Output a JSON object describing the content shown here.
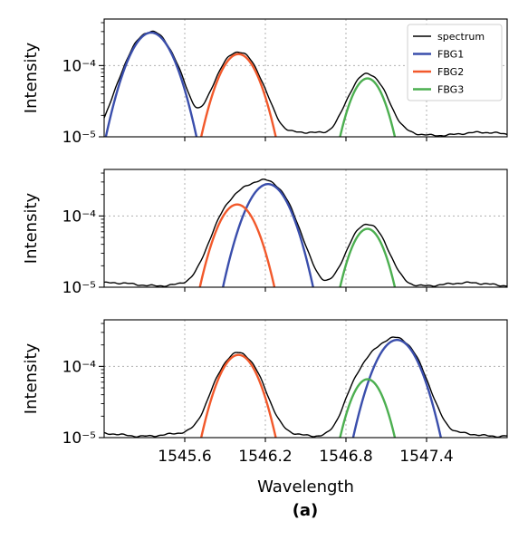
{
  "caption": "(a)",
  "colors": {
    "spectrum": "#000000",
    "FBG1": "#3a4eac",
    "FBG2": "#f2592b",
    "FBG3": "#4caf50",
    "grid": "#b0b0b0"
  },
  "legend": {
    "placement": "top-right",
    "in_panel": 0,
    "entries": [
      "spectrum",
      "FBG1",
      "FBG2",
      "FBG3"
    ]
  },
  "chart_data": [
    {
      "type": "line",
      "xlabel": "",
      "ylabel": "Intensity",
      "yscale": "log",
      "xlim": [
        1545.0,
        1548.0
      ],
      "ylim": [
        1e-05,
        0.00045
      ],
      "grid": true,
      "yticklabels": [
        "10⁻⁵",
        "10⁻⁴"
      ],
      "baseline": 1.1e-05,
      "peaks": [
        {
          "name": "FBG1",
          "center": 1545.35,
          "peak": 0.00029,
          "width": 0.13
        },
        {
          "name": "FBG2",
          "center": 1546.0,
          "peak": 0.000145,
          "width": 0.12
        },
        {
          "name": "FBG3",
          "center": 1546.96,
          "peak": 6.6e-05,
          "width": 0.105
        }
      ]
    },
    {
      "type": "line",
      "xlabel": "",
      "ylabel": "Intensity",
      "yscale": "log",
      "xlim": [
        1545.0,
        1548.0
      ],
      "ylim": [
        1e-05,
        0.00045
      ],
      "grid": true,
      "yticklabels": [
        "10⁻⁵",
        "10⁻⁴"
      ],
      "baseline": 1.1e-05,
      "peaks": [
        {
          "name": "FBG1",
          "center": 1546.22,
          "peak": 0.00028,
          "width": 0.13
        },
        {
          "name": "FBG2",
          "center": 1545.99,
          "peak": 0.000145,
          "width": 0.12
        },
        {
          "name": "FBG3",
          "center": 1546.96,
          "peak": 6.6e-05,
          "width": 0.105
        }
      ]
    },
    {
      "type": "line",
      "xlabel": "Wavelength",
      "ylabel": "Intensity",
      "yscale": "log",
      "xlim": [
        1545.0,
        1548.0
      ],
      "ylim": [
        1e-05,
        0.00045
      ],
      "grid": true,
      "xticks": [
        1545.6,
        1546.2,
        1546.8,
        1547.4
      ],
      "xticklabels": [
        "1545.6",
        "1546.2",
        "1546.8",
        "1547.4"
      ],
      "yticklabels": [
        "10⁻⁵",
        "10⁻⁴"
      ],
      "baseline": 1.1e-05,
      "peaks": [
        {
          "name": "FBG1",
          "center": 1547.18,
          "peak": 0.000235,
          "width": 0.13
        },
        {
          "name": "FBG2",
          "center": 1546.0,
          "peak": 0.000145,
          "width": 0.12
        },
        {
          "name": "FBG3",
          "center": 1546.96,
          "peak": 6.6e-05,
          "width": 0.105
        }
      ]
    }
  ]
}
